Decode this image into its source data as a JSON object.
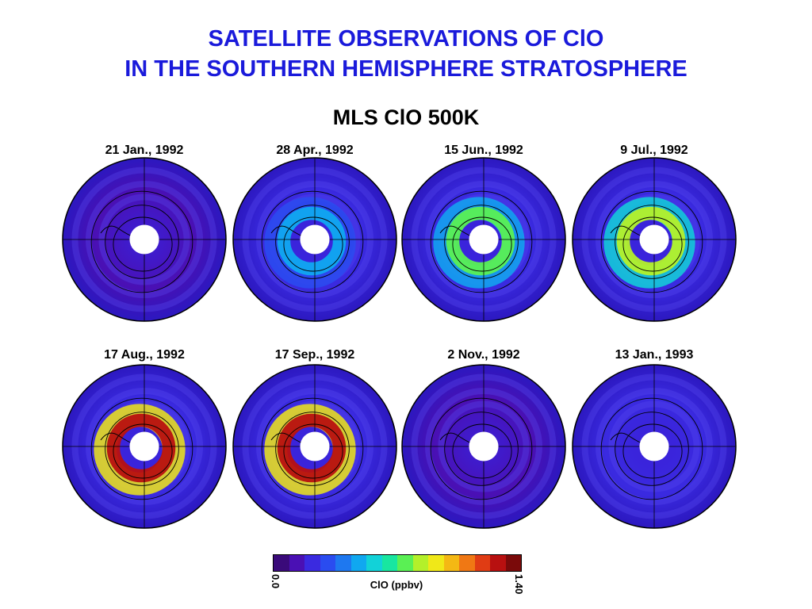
{
  "slide": {
    "title_line1": "SATELLITE OBSERVATIONS OF ClO",
    "title_line2": "IN THE SOUTHERN HEMISPHERE STRATOSPHERE"
  },
  "chart_data": {
    "type": "heatmap",
    "title": "MLS ClO 500K",
    "projection": "south-polar-stereographic",
    "panels": [
      {
        "date": "21 Jan., 1992",
        "clo_max_ppbv": 0.25,
        "hotspots": []
      },
      {
        "date": "28 Apr., 1992",
        "clo_max_ppbv": 0.55,
        "hotspots": [
          {
            "level": 0.45
          }
        ]
      },
      {
        "date": "15 Jun., 1992",
        "clo_max_ppbv": 0.8,
        "hotspots": [
          {
            "level": 0.75
          }
        ]
      },
      {
        "date": "9 Jul., 1992",
        "clo_max_ppbv": 0.85,
        "hotspots": [
          {
            "level": 0.8
          }
        ]
      },
      {
        "date": "17 Aug., 1992",
        "clo_max_ppbv": 1.3,
        "hotspots": [
          {
            "level": 1.3
          }
        ]
      },
      {
        "date": "17 Sep., 1992",
        "clo_max_ppbv": 1.3,
        "hotspots": [
          {
            "level": 1.25
          }
        ]
      },
      {
        "date": "2 Nov., 1992",
        "clo_max_ppbv": 0.25,
        "hotspots": []
      },
      {
        "date": "13 Jan., 1993",
        "clo_max_ppbv": 0.3,
        "hotspots": []
      }
    ],
    "colorbar": {
      "label": "ClO (ppbv)",
      "min_label": "0.0",
      "max_label": "1.40",
      "range": [
        0.0,
        1.4
      ],
      "colors": [
        "#3a0a7a",
        "#4a10b4",
        "#3a2ae0",
        "#2a4cf0",
        "#1e78f0",
        "#10a8f0",
        "#12d2d8",
        "#18e6a0",
        "#5af054",
        "#b4f02a",
        "#f0e818",
        "#f4b814",
        "#f07814",
        "#e03c14",
        "#b81010",
        "#7a0a0a"
      ]
    }
  }
}
